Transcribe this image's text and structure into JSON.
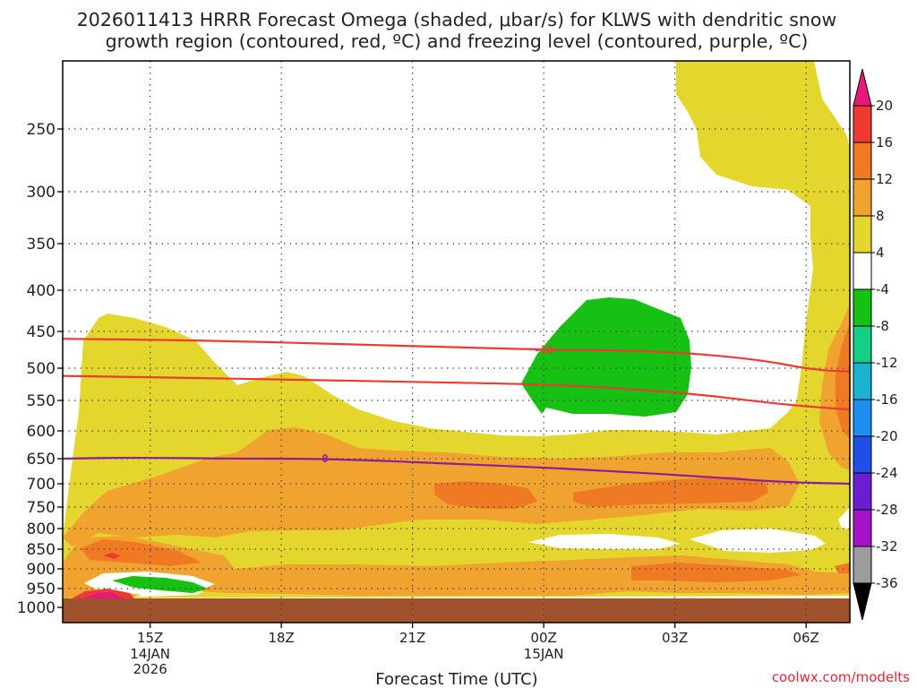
{
  "chart_data": {
    "type": "heatmap",
    "title_lines": [
      "2026011413 HRRR Forecast Omega (shaded, μbar/s) for KLWS with dendritic snow",
      "growth region (contoured, red, ºC) and freezing level (contoured, purple, ºC)"
    ],
    "xlabel": "Forecast Time (UTC)",
    "credit": "coolwx.com/modelts",
    "x_range_hours": [
      13.0,
      31.0
    ],
    "x_ticks": [
      {
        "hour": 15,
        "label": "15Z",
        "sub": [
          "14JAN",
          "2026"
        ]
      },
      {
        "hour": 18,
        "label": "18Z",
        "sub": []
      },
      {
        "hour": 21,
        "label": "21Z",
        "sub": []
      },
      {
        "hour": 24,
        "label": "00Z",
        "sub": [
          "15JAN"
        ]
      },
      {
        "hour": 27,
        "label": "03Z",
        "sub": []
      },
      {
        "hour": 30,
        "label": "06Z",
        "sub": []
      }
    ],
    "y_ticks_hpa": [
      250,
      300,
      350,
      400,
      450,
      500,
      550,
      600,
      650,
      700,
      750,
      800,
      850,
      900,
      950,
      1000
    ],
    "y_range_hpa": [
      200,
      1015
    ],
    "colorbar": {
      "ticks": [
        "20",
        "16",
        "12",
        "8",
        "4",
        "-4",
        "-8",
        "-12",
        "-16",
        "-20",
        "-24",
        "-28",
        "-32",
        "-36"
      ],
      "colors": [
        "#e8197d",
        "#ef3a33",
        "#f07a23",
        "#f0a32e",
        "#e5d62e",
        "#ffffff",
        "#16c113",
        "#15cf85",
        "#19b3cf",
        "#1e8ff2",
        "#1f4fe6",
        "#6a1ed0",
        "#a513c8",
        "#9c9c9c",
        "#000000"
      ]
    },
    "contours": [
      {
        "name": "dgz-upper (-18°C)",
        "color": "#ef3a33",
        "label": "-18",
        "points": [
          [
            13.0,
            460
          ],
          [
            16.0,
            462
          ],
          [
            20.0,
            468
          ],
          [
            24.0,
            475
          ],
          [
            26.5,
            476
          ],
          [
            28.8,
            487
          ],
          [
            30.2,
            503
          ],
          [
            31.0,
            505
          ]
        ]
      },
      {
        "name": "dgz-lower (-12°C)",
        "color": "#ef3a33",
        "label": "",
        "points": [
          [
            13.0,
            512
          ],
          [
            16.0,
            515
          ],
          [
            20.0,
            520
          ],
          [
            24.0,
            525
          ],
          [
            25.5,
            530
          ],
          [
            27.5,
            540
          ],
          [
            29.5,
            557
          ],
          [
            31.0,
            565
          ]
        ]
      },
      {
        "name": "freezing level (0°C)",
        "color": "#8a1e9c",
        "label": "0",
        "points": [
          [
            13.0,
            650
          ],
          [
            14.5,
            648
          ],
          [
            17.0,
            650
          ],
          [
            19.0,
            650
          ],
          [
            22.0,
            660
          ],
          [
            25.0,
            672
          ],
          [
            27.5,
            685
          ],
          [
            29.5,
            697
          ],
          [
            31.0,
            700
          ]
        ]
      }
    ]
  }
}
